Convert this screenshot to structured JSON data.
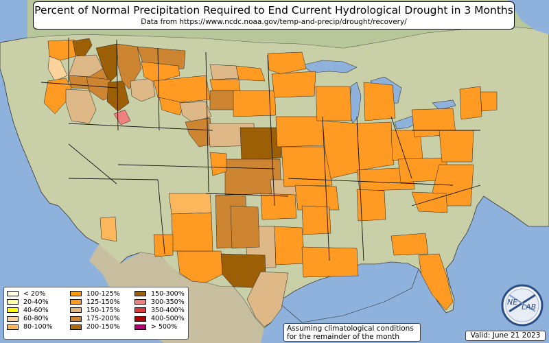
{
  "title": "Percent of Normal Precipitation Required to End Current Hydrological Drought in 3 Months",
  "subtitle": "Data from https://www.ncdc.noaa.gov/temp-and-precip/drought/recovery/",
  "legend": [
    {
      "label": "< 20%",
      "color": "#ffffe0"
    },
    {
      "label": "20-40%",
      "color": "#ffffa6"
    },
    {
      "label": "40-60%",
      "color": "#ffff00"
    },
    {
      "label": "60-80%",
      "color": "#fcd39a"
    },
    {
      "label": "80-100%",
      "color": "#fcb75c"
    },
    {
      "label": "100-125%",
      "color": "#ff9a00"
    },
    {
      "label": "125-150%",
      "color": "#ff9a22"
    },
    {
      "label": "150-175%",
      "color": "#deb887"
    },
    {
      "label": "175-200%",
      "color": "#cd8532"
    },
    {
      "label": "200-150%",
      "color": "#aa6a11"
    },
    {
      "label": "150-300%",
      "color": "#9c5f06"
    },
    {
      "label": "300-350%",
      "color": "#f08080"
    },
    {
      "label": "350-400%",
      "color": "#dc3c3c"
    },
    {
      "label": "400-500%",
      "color": "#b00000"
    },
    {
      "label": "> 500%",
      "color": "#b00070"
    }
  ],
  "note": {
    "line1": "Assuming climatological conditions",
    "line2": "for the remainder of the month"
  },
  "valid": "Valid: June 21 2023",
  "logo": {
    "text_left": "NE",
    "text_right": "LAB"
  },
  "colors": {
    "ocean": "#8fb2dd",
    "land": "#c8cfa8",
    "lakes": "#8fb2dd"
  }
}
